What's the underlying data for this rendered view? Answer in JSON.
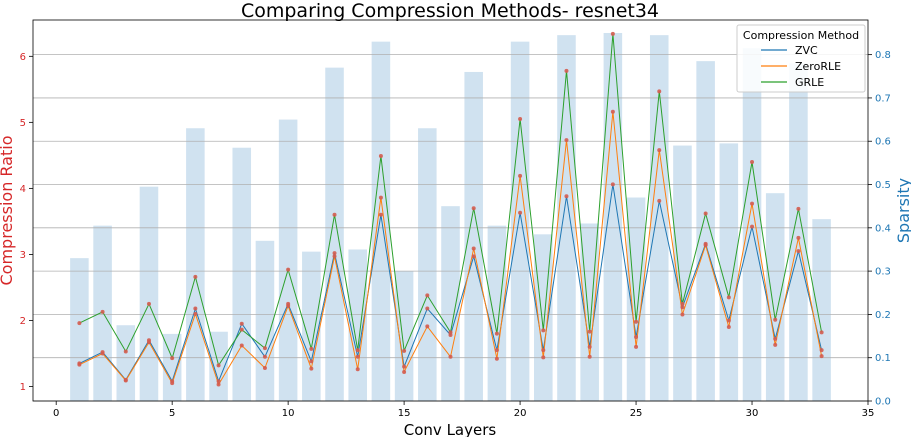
{
  "chart_data": {
    "type": "line",
    "title": "Comparing Compression Methods- resnet34",
    "xlabel": "Conv Layers",
    "ylabel": "Compression Ratio",
    "y2label": "Sparsity",
    "xlim": [
      -1,
      35
    ],
    "ylim": [
      0.78,
      6.55
    ],
    "y2lim": [
      0,
      0.88
    ],
    "xticks": [
      0,
      5,
      10,
      15,
      20,
      25,
      30,
      35
    ],
    "yticks": [
      1,
      2,
      3,
      4,
      5,
      6
    ],
    "y2ticks": [
      0.0,
      0.1,
      0.2,
      0.3,
      0.4,
      0.5,
      0.6,
      0.7,
      0.8
    ],
    "ytick_labels": [
      "1",
      "2",
      "3",
      "4",
      "5",
      "6"
    ],
    "y2tick_labels": [
      "0.0",
      "0.1",
      "0.2",
      "0.3",
      "0.4",
      "0.5",
      "0.6",
      "0.7",
      "0.8"
    ],
    "grid": "horizontal (right axis)",
    "legend": {
      "title": "Compression Method",
      "position": "top-right"
    },
    "colors": {
      "ZVC": "#1f77b4",
      "ZeroRLE": "#ff7f0e",
      "GRLE": "#2ca02c",
      "markers": "#d45c4f",
      "bars": "#bcd6ea",
      "left_axis": "#d62728",
      "right_axis": "#1f77b4"
    },
    "x": [
      1,
      2,
      3,
      4,
      5,
      6,
      7,
      8,
      9,
      10,
      11,
      12,
      13,
      14,
      15,
      16,
      17,
      18,
      19,
      20,
      21,
      22,
      23,
      24,
      25,
      26,
      27,
      28,
      29,
      30,
      31,
      32,
      33
    ],
    "bars": {
      "name": "Sparsity",
      "axis": "right",
      "values": [
        0.33,
        0.405,
        0.175,
        0.495,
        0.155,
        0.63,
        0.16,
        0.585,
        0.37,
        0.65,
        0.345,
        0.77,
        0.35,
        0.83,
        0.3,
        0.63,
        0.45,
        0.76,
        0.405,
        0.83,
        0.385,
        0.845,
        0.41,
        0.85,
        0.47,
        0.845,
        0.59,
        0.785,
        0.595,
        0.815,
        0.48,
        0.78,
        0.42
      ]
    },
    "series": [
      {
        "name": "ZVC",
        "values": [
          1.35,
          1.52,
          1.1,
          1.7,
          1.08,
          2.18,
          1.08,
          1.95,
          1.45,
          2.25,
          1.38,
          3.02,
          1.45,
          3.6,
          1.3,
          2.18,
          1.78,
          2.97,
          1.55,
          3.63,
          1.55,
          3.88,
          1.6,
          4.06,
          1.75,
          3.81,
          2.2,
          3.16,
          2.0,
          3.42,
          1.72,
          3.05,
          1.55
        ]
      },
      {
        "name": "ZeroRLE",
        "values": [
          1.33,
          1.5,
          1.09,
          1.67,
          1.05,
          2.1,
          1.03,
          1.62,
          1.28,
          2.22,
          1.27,
          2.97,
          1.26,
          3.86,
          1.22,
          1.91,
          1.45,
          3.09,
          1.42,
          4.19,
          1.44,
          4.73,
          1.45,
          5.16,
          1.6,
          4.58,
          2.09,
          3.14,
          1.9,
          3.77,
          1.63,
          3.25,
          1.46
        ]
      },
      {
        "name": "GRLE",
        "values": [
          1.96,
          2.13,
          1.53,
          2.25,
          1.43,
          2.66,
          1.32,
          1.86,
          1.58,
          2.77,
          1.57,
          3.6,
          1.55,
          4.49,
          1.54,
          2.38,
          1.82,
          3.7,
          1.8,
          5.05,
          1.85,
          5.78,
          1.83,
          6.34,
          1.98,
          5.47,
          2.25,
          3.62,
          2.35,
          4.4,
          2.01,
          3.69,
          1.82
        ]
      }
    ]
  }
}
